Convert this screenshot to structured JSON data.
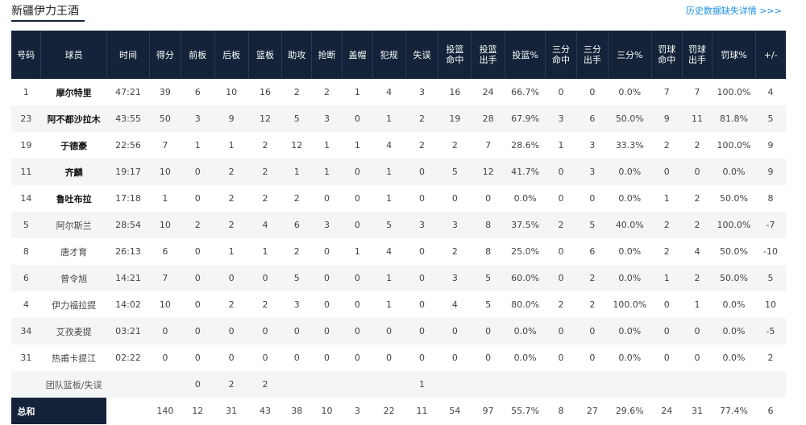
{
  "header": {
    "team_title": "新疆伊力王酒",
    "history_link": "历史数据缺失详情 >>>"
  },
  "columns": [
    "号码",
    "球员",
    "时间",
    "得分",
    "前板",
    "后板",
    "篮板",
    "助攻",
    "抢断",
    "盖帽",
    "犯规",
    "失误",
    "投篮\n命中",
    "投篮\n出手",
    "投篮%",
    "三分\n命中",
    "三分\n出手",
    "三分%",
    "罚球\n命中",
    "罚球\n出手",
    "罚球%",
    "+/-"
  ],
  "players": [
    {
      "starter": true,
      "cells": [
        "1",
        "摩尔特里",
        "47:21",
        "39",
        "6",
        "10",
        "16",
        "2",
        "2",
        "1",
        "4",
        "3",
        "16",
        "24",
        "66.7%",
        "0",
        "0",
        "0.0%",
        "7",
        "7",
        "100.0%",
        "4"
      ]
    },
    {
      "starter": true,
      "cells": [
        "23",
        "阿不都沙拉木",
        "43:55",
        "50",
        "3",
        "9",
        "12",
        "5",
        "3",
        "0",
        "1",
        "2",
        "19",
        "28",
        "67.9%",
        "3",
        "6",
        "50.0%",
        "9",
        "11",
        "81.8%",
        "5"
      ]
    },
    {
      "starter": true,
      "cells": [
        "19",
        "于德豪",
        "22:56",
        "7",
        "1",
        "1",
        "2",
        "12",
        "1",
        "1",
        "4",
        "2",
        "2",
        "7",
        "28.6%",
        "1",
        "3",
        "33.3%",
        "2",
        "2",
        "100.0%",
        "9"
      ]
    },
    {
      "starter": true,
      "cells": [
        "11",
        "齐麟",
        "19:17",
        "10",
        "0",
        "2",
        "2",
        "1",
        "1",
        "0",
        "1",
        "0",
        "5",
        "12",
        "41.7%",
        "0",
        "3",
        "0.0%",
        "0",
        "0",
        "0.0%",
        "9"
      ]
    },
    {
      "starter": true,
      "cells": [
        "14",
        "鲁吐布拉",
        "17:18",
        "1",
        "0",
        "2",
        "2",
        "2",
        "0",
        "0",
        "1",
        "0",
        "0",
        "0",
        "0.0%",
        "0",
        "0",
        "0.0%",
        "1",
        "2",
        "50.0%",
        "8"
      ]
    },
    {
      "starter": false,
      "cells": [
        "5",
        "阿尔斯兰",
        "28:54",
        "10",
        "2",
        "2",
        "4",
        "6",
        "3",
        "0",
        "5",
        "3",
        "3",
        "8",
        "37.5%",
        "2",
        "5",
        "40.0%",
        "2",
        "2",
        "100.0%",
        "-7"
      ]
    },
    {
      "starter": false,
      "cells": [
        "8",
        "唐才育",
        "26:13",
        "6",
        "0",
        "1",
        "1",
        "2",
        "0",
        "1",
        "4",
        "0",
        "2",
        "8",
        "25.0%",
        "0",
        "6",
        "0.0%",
        "2",
        "4",
        "50.0%",
        "-10"
      ]
    },
    {
      "starter": false,
      "cells": [
        "6",
        "曾令旭",
        "14:21",
        "7",
        "0",
        "0",
        "0",
        "5",
        "0",
        "0",
        "1",
        "0",
        "3",
        "5",
        "60.0%",
        "0",
        "2",
        "0.0%",
        "1",
        "2",
        "50.0%",
        "5"
      ]
    },
    {
      "starter": false,
      "cells": [
        "4",
        "伊力福拉提",
        "14:02",
        "10",
        "0",
        "2",
        "2",
        "3",
        "0",
        "0",
        "1",
        "0",
        "4",
        "5",
        "80.0%",
        "2",
        "2",
        "100.0%",
        "0",
        "1",
        "0.0%",
        "10"
      ]
    },
    {
      "starter": false,
      "cells": [
        "34",
        "艾孜麦提",
        "03:21",
        "0",
        "0",
        "0",
        "0",
        "0",
        "0",
        "0",
        "0",
        "0",
        "0",
        "0",
        "0.0%",
        "0",
        "0",
        "0.0%",
        "0",
        "0",
        "0.0%",
        "-5"
      ]
    },
    {
      "starter": false,
      "cells": [
        "31",
        "热甫卡提江",
        "02:22",
        "0",
        "0",
        "0",
        "0",
        "0",
        "0",
        "0",
        "0",
        "0",
        "0",
        "0",
        "0.0%",
        "0",
        "0",
        "0.0%",
        "0",
        "0",
        "0.0%",
        "2"
      ]
    }
  ],
  "team_row": {
    "cells": [
      "",
      "团队篮板/失误",
      "",
      "",
      "0",
      "2",
      "2",
      "",
      "",
      "",
      "",
      "1",
      "",
      "",
      "",
      "",
      "",
      "",
      "",
      "",
      "",
      ""
    ]
  },
  "total_row": {
    "cells": [
      "总和",
      "",
      "",
      "140",
      "12",
      "31",
      "43",
      "38",
      "10",
      "3",
      "22",
      "11",
      "54",
      "97",
      "55.7%",
      "8",
      "27",
      "29.6%",
      "24",
      "31",
      "77.4%",
      "6"
    ]
  },
  "colors": {
    "header_bg": "#14233a",
    "link": "#1a8fe3",
    "row_alt": "#f4f5f7"
  }
}
